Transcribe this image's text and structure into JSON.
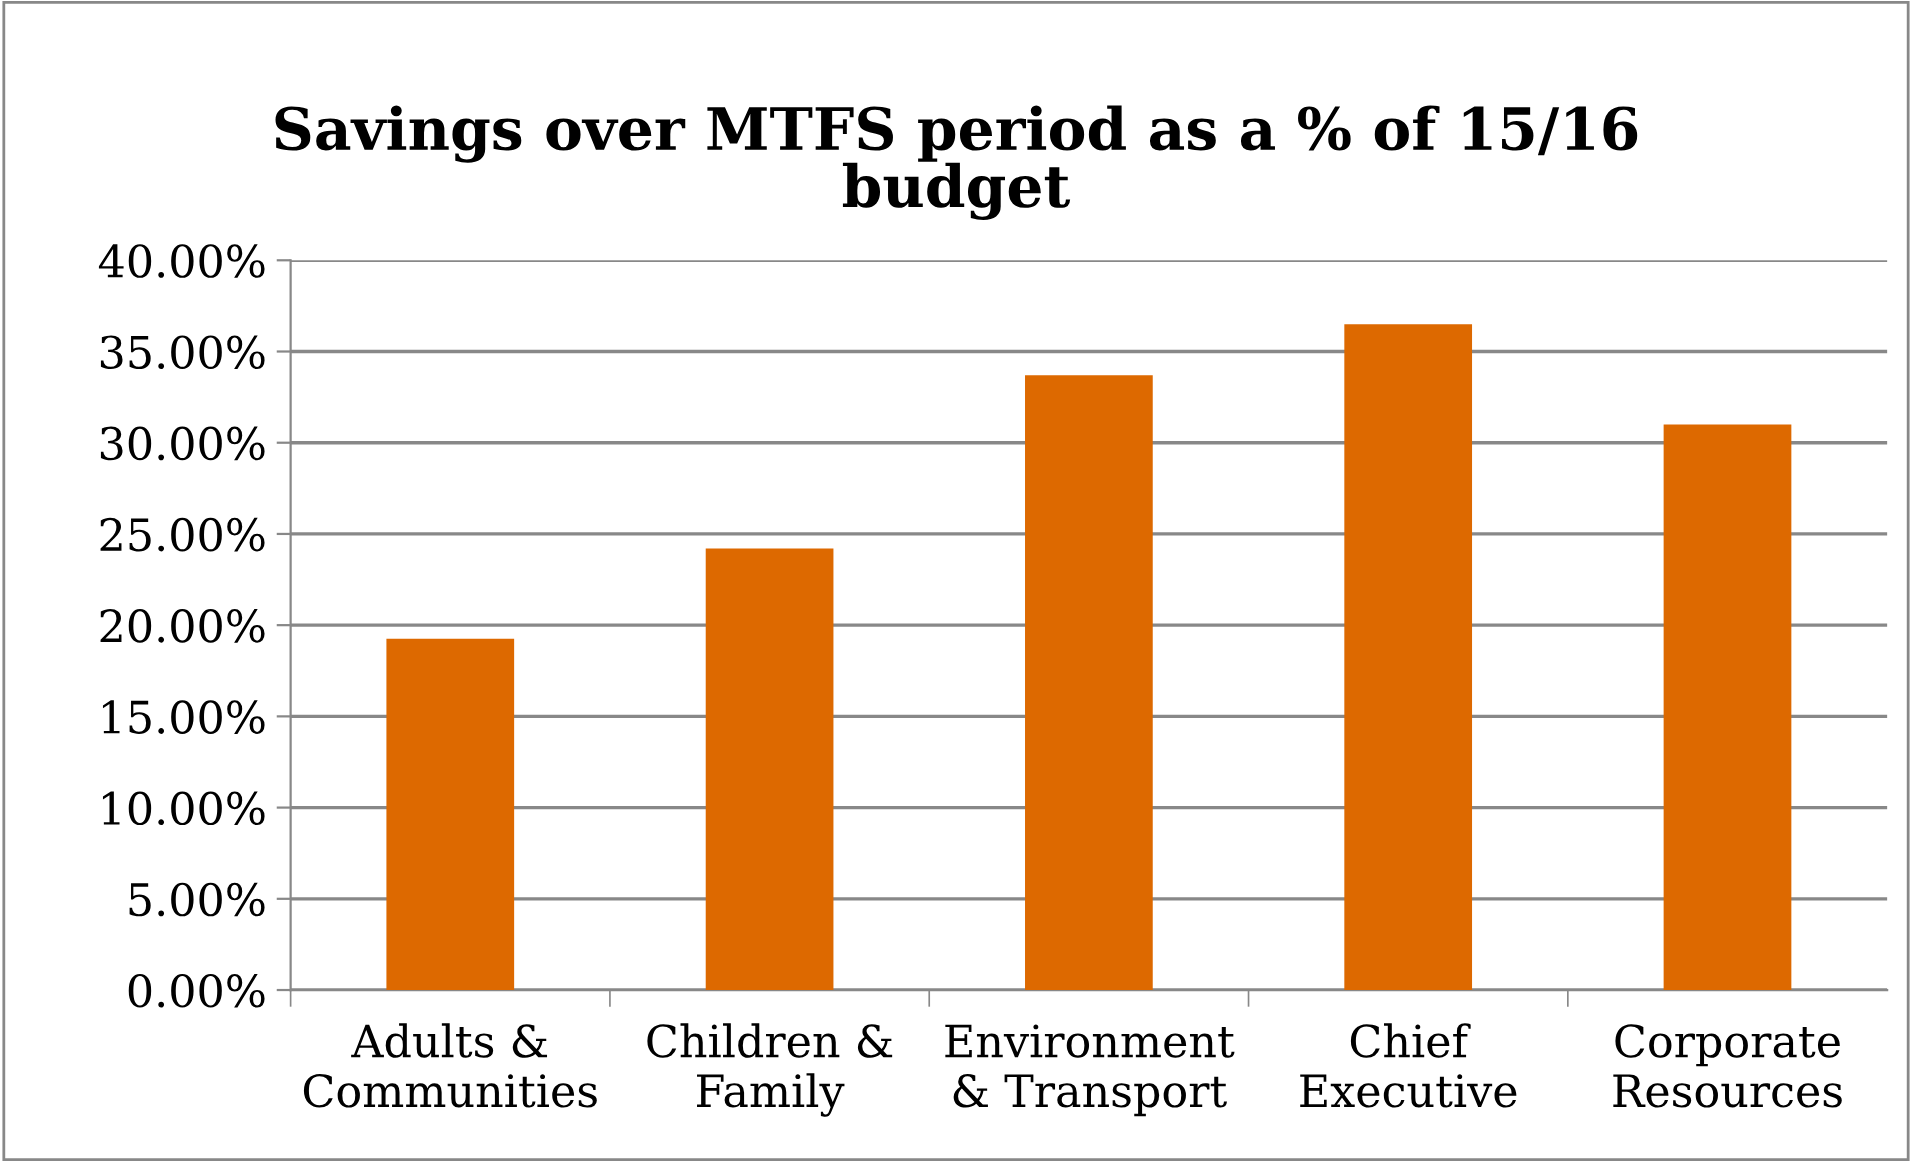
{
  "chart_data": {
    "type": "bar",
    "title": "Savings over MTFS period as a % of 15/16\nbudget",
    "categories": [
      "Adults &\nCommunities",
      "Children &\nFamily",
      "Environment\n& Transport",
      "Chief\nExecutive",
      "Corporate\nResources"
    ],
    "values": [
      19.25,
      24.2,
      33.7,
      36.5,
      31.0
    ],
    "color": "#dd6900",
    "ylim": [
      0,
      40
    ],
    "yticks": [
      {
        "value": 0,
        "label": "0.00%"
      },
      {
        "value": 5,
        "label": "5.00%"
      },
      {
        "value": 10,
        "label": "10.00%"
      },
      {
        "value": 15,
        "label": "15.00%"
      },
      {
        "value": 20,
        "label": "20.00%"
      },
      {
        "value": 25,
        "label": "25.00%"
      },
      {
        "value": 30,
        "label": "30.00%"
      },
      {
        "value": 35,
        "label": "35.00%"
      },
      {
        "value": 40,
        "label": "40.00%"
      }
    ],
    "grid": "y"
  }
}
